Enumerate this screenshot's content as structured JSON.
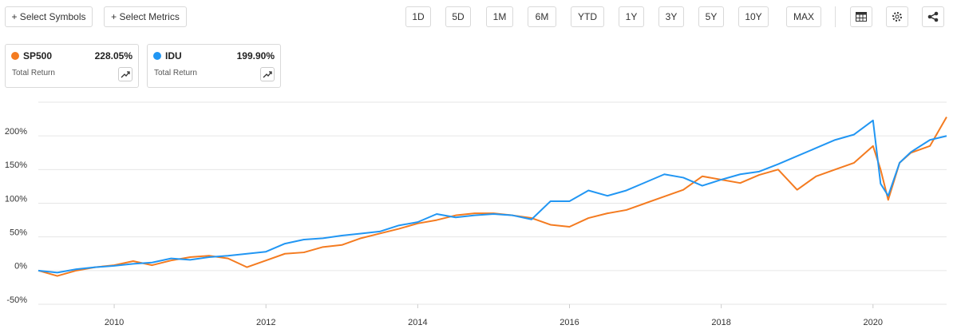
{
  "toolbar": {
    "select_symbols": "+ Select Symbols",
    "select_metrics": "+ Select Metrics",
    "periods": [
      "1D",
      "5D",
      "1M",
      "6M",
      "YTD",
      "1Y",
      "3Y",
      "5Y",
      "10Y",
      "MAX"
    ]
  },
  "cards": [
    {
      "value": "228.05%",
      "metric": "Total Return"
    },
    {
      "value": "199.90%",
      "metric": "Total Return"
    }
  ],
  "chart_data": {
    "type": "line",
    "x": [
      2009,
      2009.25,
      2009.5,
      2009.75,
      2010,
      2010.25,
      2010.5,
      2010.75,
      2011,
      2011.25,
      2011.5,
      2011.75,
      2012,
      2012.25,
      2012.5,
      2012.75,
      2013,
      2013.25,
      2013.5,
      2013.75,
      2014,
      2014.25,
      2014.5,
      2014.75,
      2015,
      2015.25,
      2015.5,
      2015.75,
      2016,
      2016.25,
      2016.5,
      2016.75,
      2017,
      2017.25,
      2017.5,
      2017.75,
      2018,
      2018.25,
      2018.5,
      2018.75,
      2019,
      2019.25,
      2019.5,
      2019.75,
      2020,
      2020.1,
      2020.2,
      2020.35,
      2020.5,
      2020.75,
      2020.97
    ],
    "series": [
      {
        "name": "SP500",
        "color": "#f47b20",
        "values": [
          0,
          -8,
          0,
          5,
          8,
          14,
          8,
          15,
          20,
          22,
          18,
          5,
          15,
          25,
          27,
          35,
          38,
          48,
          55,
          62,
          70,
          75,
          82,
          85,
          85,
          82,
          78,
          68,
          65,
          78,
          85,
          90,
          100,
          110,
          120,
          140,
          135,
          130,
          142,
          150,
          120,
          140,
          150,
          160,
          185,
          150,
          105,
          160,
          175,
          185,
          228.05
        ]
      },
      {
        "name": "IDU",
        "color": "#2196f3",
        "values": [
          0,
          -3,
          2,
          5,
          7,
          10,
          12,
          18,
          16,
          20,
          22,
          25,
          28,
          40,
          46,
          48,
          52,
          55,
          58,
          67,
          72,
          84,
          79,
          82,
          84,
          82,
          76,
          103,
          103,
          119,
          111,
          119,
          131,
          143,
          138,
          126,
          135,
          143,
          147,
          158,
          170,
          182,
          194,
          202,
          223,
          129,
          111,
          160,
          176,
          194,
          199.9
        ]
      }
    ],
    "xlim": [
      2009,
      2020.97
    ],
    "xticks": [
      2010,
      2012,
      2014,
      2016,
      2018,
      2020
    ],
    "ylim": [
      -50,
      250
    ],
    "yticks": [
      {
        "value": -50,
        "label": "-50%"
      },
      {
        "value": 0,
        "label": "0%"
      },
      {
        "value": 50,
        "label": "50%"
      },
      {
        "value": 100,
        "label": "100%"
      },
      {
        "value": 150,
        "label": "150%"
      },
      {
        "value": 200,
        "label": "200%"
      }
    ],
    "grid": true
  }
}
